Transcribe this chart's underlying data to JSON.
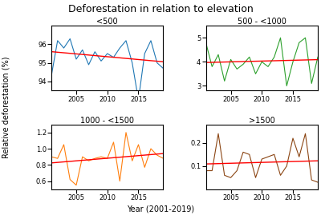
{
  "title": "Deforestation in relation to elevation",
  "xlabel": "Year (2001-2019)",
  "ylabel": "Relative deforestation (%)",
  "years": [
    2001,
    2002,
    2003,
    2004,
    2005,
    2006,
    2007,
    2008,
    2009,
    2010,
    2011,
    2012,
    2013,
    2014,
    2015,
    2016,
    2017,
    2018,
    2019
  ],
  "subplots": [
    {
      "title": "<500",
      "color": "#1f77b4",
      "data": [
        94.3,
        96.2,
        95.8,
        96.3,
        95.2,
        95.7,
        94.9,
        95.6,
        95.1,
        95.5,
        95.3,
        95.8,
        96.2,
        95.0,
        93.0,
        95.5,
        96.2,
        95.0,
        94.7
      ],
      "ylim": [
        93.5,
        97.0
      ],
      "yticks": [
        94,
        95,
        96
      ]
    },
    {
      "title": "500 - <1000",
      "color": "#2ca02c",
      "data": [
        4.8,
        3.8,
        4.3,
        3.2,
        4.1,
        3.7,
        3.9,
        4.2,
        3.5,
        4.0,
        3.8,
        4.2,
        5.0,
        3.0,
        4.0,
        4.8,
        5.0,
        3.1,
        4.2
      ],
      "ylim": [
        2.8,
        5.5
      ],
      "yticks": [
        3,
        4,
        5
      ]
    },
    {
      "title": "1000 - <1500",
      "color": "#ff7f0e",
      "data": [
        0.9,
        0.88,
        1.05,
        0.62,
        0.55,
        0.9,
        0.85,
        0.88,
        0.9,
        0.88,
        1.08,
        0.6,
        1.2,
        0.85,
        1.05,
        0.77,
        1.0,
        0.92,
        0.88
      ],
      "ylim": [
        0.5,
        1.3
      ],
      "yticks": [
        0.6,
        0.8,
        1.0,
        1.2
      ]
    },
    {
      "title": ">1500",
      "color": "#8B4513",
      "data": [
        0.08,
        0.08,
        0.24,
        0.06,
        0.05,
        0.08,
        0.16,
        0.15,
        0.05,
        0.13,
        0.14,
        0.15,
        0.06,
        0.1,
        0.22,
        0.14,
        0.24,
        0.04,
        0.03
      ],
      "ylim": [
        0.0,
        0.28
      ],
      "yticks": [
        0.1,
        0.2
      ]
    }
  ],
  "title_fontsize": 9,
  "subplot_title_fontsize": 7,
  "tick_fontsize": 6,
  "ylabel_fontsize": 7,
  "xlabel_fontsize": 7,
  "suptitle_fontsize": 9
}
